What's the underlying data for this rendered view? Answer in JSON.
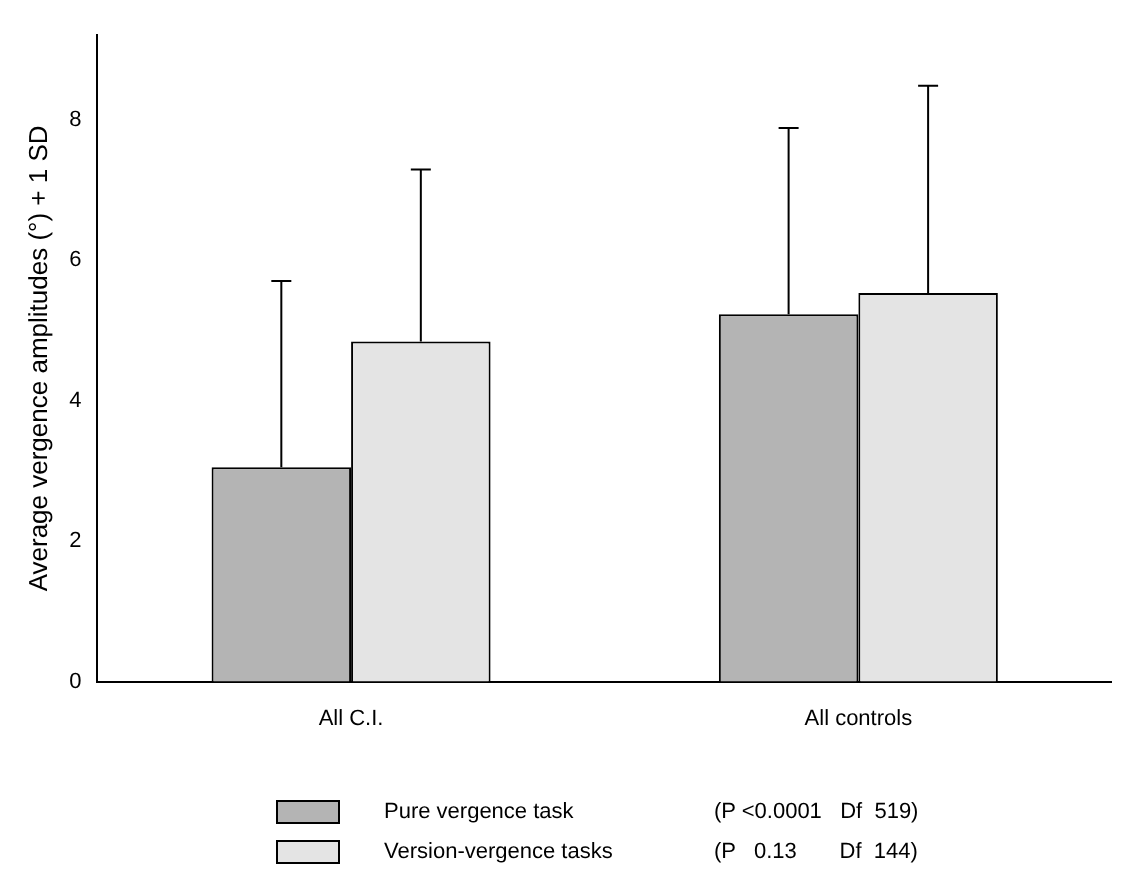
{
  "chart_data": {
    "type": "bar",
    "ylabel": "Average vergence amplitudes (°) + 1 SD",
    "categories": [
      "All C.I.",
      "All controls"
    ],
    "series": [
      {
        "name": "Pure vergence task",
        "color": "#b4b4b4",
        "values": [
          3.05,
          5.23
        ],
        "errors": [
          [
            3.05,
            5.7
          ],
          [
            5.23,
            7.88
          ]
        ]
      },
      {
        "name": "Version-vergence tasks",
        "color": "#e4e4e4",
        "values": [
          4.84,
          5.53
        ],
        "errors": [
          [
            4.84,
            7.29
          ],
          [
            5.53,
            8.48
          ]
        ]
      }
    ],
    "ylim": [
      0,
      9.2
    ],
    "yticks": [
      0,
      2,
      4,
      6,
      8
    ],
    "grid": false,
    "legend": "bottom",
    "annotations": [
      "(P <0.0001   Df  519)",
      "(P   0.13       Df  144)"
    ]
  }
}
